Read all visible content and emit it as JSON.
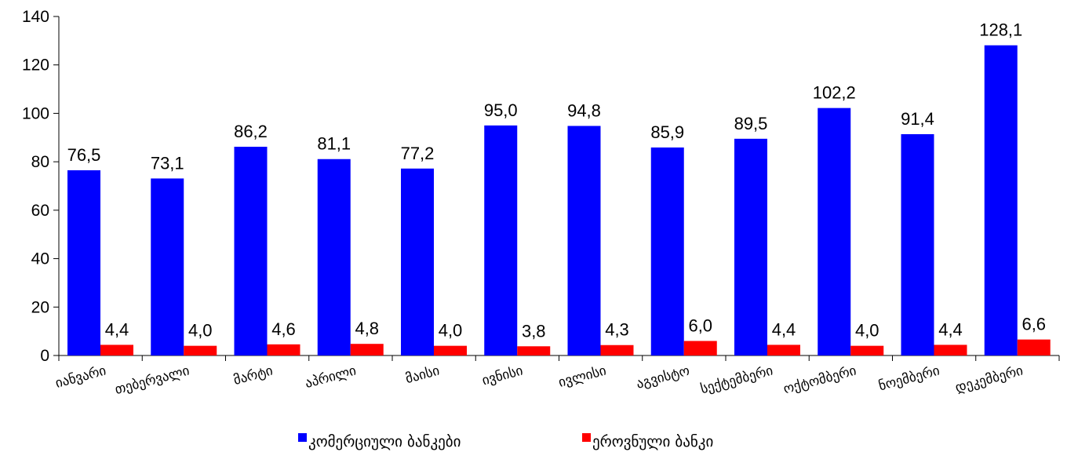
{
  "chart_data": {
    "type": "bar",
    "categories": [
      "იანვარი",
      "თებერვალი",
      "მარტი",
      "აპრილი",
      "მაისი",
      "ივნისი",
      "ივლისი",
      "აგვისტო",
      "სექტემბერი",
      "ოქტომბერი",
      "ნოემბერი",
      "დეკემბერი"
    ],
    "series": [
      {
        "name": "კომერციული ბანკები",
        "color": "#0000ff",
        "values": [
          76.5,
          73.1,
          86.2,
          81.1,
          77.2,
          95.0,
          94.8,
          85.9,
          89.5,
          102.2,
          91.4,
          128.1
        ],
        "labels": [
          "76,5",
          "73,1",
          "86,2",
          "81,1",
          "77,2",
          "95,0",
          "94,8",
          "85,9",
          "89,5",
          "102,2",
          "91,4",
          "128,1"
        ]
      },
      {
        "name": "ეროვნული ბანკი",
        "color": "#ff0000",
        "values": [
          4.4,
          4.0,
          4.6,
          4.8,
          4.0,
          3.8,
          4.3,
          6.0,
          4.4,
          4.0,
          4.4,
          6.6
        ],
        "labels": [
          "4,4",
          "4,0",
          "4,6",
          "4,8",
          "4,0",
          "3,8",
          "4,3",
          "6,0",
          "4,4",
          "4,0",
          "4,4",
          "6,6"
        ]
      }
    ],
    "ylim": [
      0,
      140
    ],
    "yticks": [
      0,
      20,
      40,
      60,
      80,
      100,
      120,
      140
    ],
    "grid": false,
    "legend": "bottom",
    "title": "",
    "xlabel": "",
    "ylabel": ""
  }
}
